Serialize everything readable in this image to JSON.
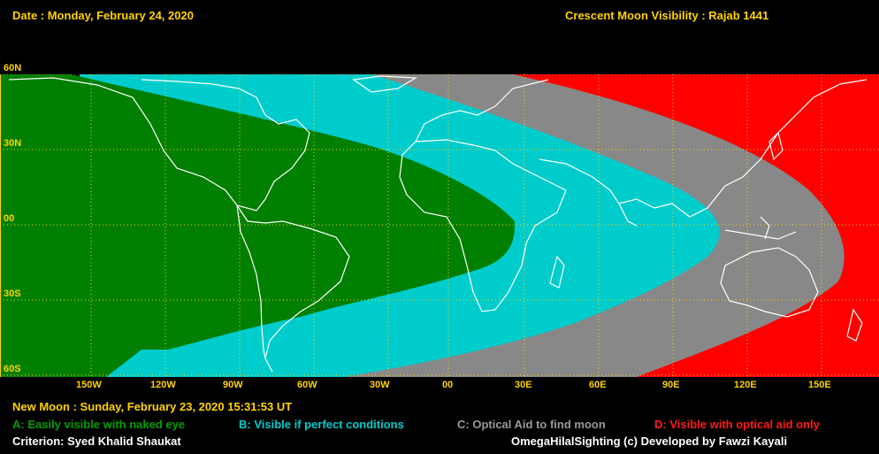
{
  "header": {
    "date": "Date : Monday, February 24, 2020",
    "title": "Crescent Moon Visibility : Rajab  1441"
  },
  "map": {
    "lat_labels": [
      "60N",
      "30N",
      "00",
      "30S",
      "60S"
    ],
    "lon_labels": [
      "150W",
      "120W",
      "90W",
      "60W",
      "30W",
      "00",
      "30E",
      "60E",
      "90E",
      "120E",
      "150E"
    ],
    "zone_colors": {
      "A": "#007f00",
      "B": "#00cccc",
      "C": "#888888",
      "D": "#ff0000"
    }
  },
  "footer": {
    "new_moon": "New Moon : Sunday, February 23, 2020  15:31:53  UT",
    "legend": {
      "a": "A: Easily visible with naked eye",
      "b": "B: Visible if perfect conditions",
      "c": "C: Optical Aid to find moon",
      "d": "D: Visible with optical aid only"
    },
    "criterion": "Criterion: Syed Khalid Shaukat",
    "credit": "OmegaHilalSighting  (c)  Developed by Fawzi Kayali"
  }
}
